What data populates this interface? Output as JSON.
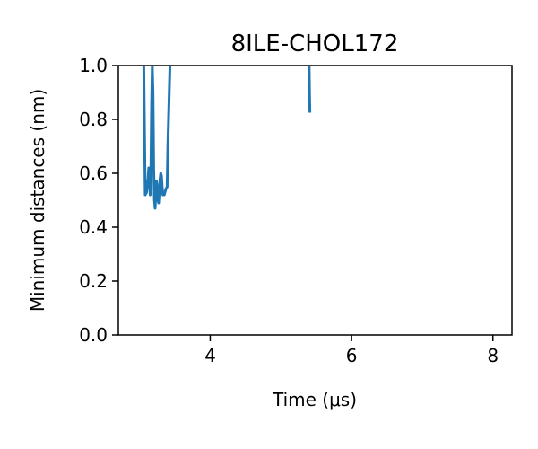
{
  "chart_data": {
    "type": "line",
    "title": "8ILE-CHOL172",
    "xlabel": "Time (μs)",
    "ylabel": "Minimum distances (nm)",
    "xlim": [
      2.7,
      8.27
    ],
    "ylim": [
      0.0,
      1.0
    ],
    "xticks": [
      4,
      6,
      8
    ],
    "xtick_labels": [
      "4",
      "6",
      "8"
    ],
    "yticks": [
      0.0,
      0.2,
      0.4,
      0.6,
      0.8,
      1.0
    ],
    "ytick_labels": [
      "0.0",
      "0.2",
      "0.4",
      "0.6",
      "0.8",
      "1.0"
    ],
    "grid": false,
    "color": "#1f77b4",
    "series": [
      {
        "segments": [
          [
            [
              3.06,
              1.0
            ],
            [
              3.07,
              0.75
            ],
            [
              3.08,
              0.52
            ],
            [
              3.1,
              0.53
            ],
            [
              3.12,
              0.58
            ],
            [
              3.13,
              0.62
            ],
            [
              3.14,
              0.57
            ],
            [
              3.15,
              0.52
            ],
            [
              3.16,
              0.6
            ],
            [
              3.17,
              0.85
            ],
            [
              3.18,
              1.0
            ],
            [
              3.19,
              0.9
            ],
            [
              3.2,
              0.62
            ],
            [
              3.21,
              0.5
            ],
            [
              3.22,
              0.47
            ],
            [
              3.23,
              0.52
            ],
            [
              3.24,
              0.57
            ],
            [
              3.25,
              0.55
            ],
            [
              3.26,
              0.5
            ],
            [
              3.27,
              0.49
            ],
            [
              3.28,
              0.53
            ],
            [
              3.29,
              0.58
            ],
            [
              3.3,
              0.6
            ],
            [
              3.31,
              0.59
            ],
            [
              3.32,
              0.55
            ],
            [
              3.33,
              0.52
            ],
            [
              3.35,
              0.52
            ],
            [
              3.37,
              0.54
            ],
            [
              3.39,
              0.55
            ],
            [
              3.4,
              0.7
            ],
            [
              3.42,
              0.9
            ],
            [
              3.43,
              1.0
            ]
          ],
          [
            [
              5.4,
              1.0
            ],
            [
              5.405,
              0.9
            ],
            [
              5.41,
              0.83
            ]
          ]
        ]
      }
    ]
  }
}
